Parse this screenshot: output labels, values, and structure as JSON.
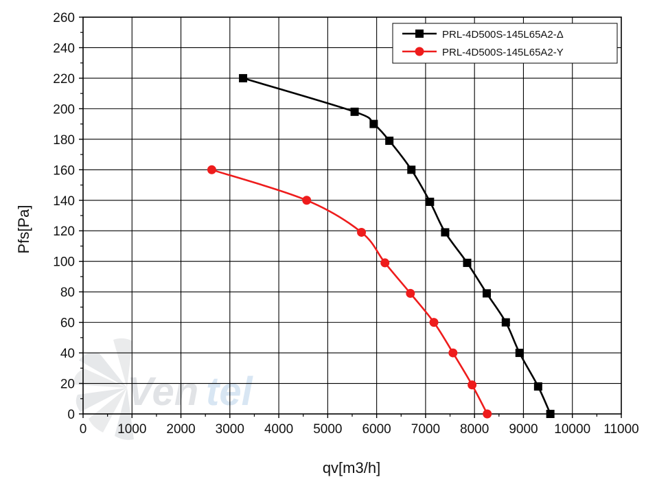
{
  "chart_data": {
    "type": "line",
    "xlabel": "qv[m3/h]",
    "ylabel": "Pfs[Pa]",
    "xlim": [
      0,
      11000
    ],
    "ylim": [
      0,
      260
    ],
    "x_ticks": [
      0,
      1000,
      2000,
      3000,
      4000,
      5000,
      6000,
      7000,
      8000,
      9000,
      10000,
      11000
    ],
    "y_ticks": [
      0,
      20,
      40,
      60,
      80,
      100,
      120,
      140,
      160,
      180,
      200,
      220,
      240,
      260
    ],
    "grid": true,
    "legend_position": "top-right",
    "series": [
      {
        "name": "PRL-4D500S-145L65A2-Δ",
        "color": "#000000",
        "marker": "square",
        "points": [
          [
            3270,
            220
          ],
          [
            5550,
            198
          ],
          [
            5940,
            190
          ],
          [
            6260,
            179
          ],
          [
            6710,
            160
          ],
          [
            7090,
            139
          ],
          [
            7400,
            119
          ],
          [
            7850,
            99
          ],
          [
            8250,
            79
          ],
          [
            8640,
            60
          ],
          [
            8920,
            40
          ],
          [
            9300,
            18
          ],
          [
            9550,
            0
          ]
        ]
      },
      {
        "name": "PRL-4D500S-145L65A2-Y",
        "color": "#ee1c1c",
        "marker": "circle",
        "points": [
          [
            2630,
            160
          ],
          [
            4570,
            140
          ],
          [
            5690,
            119
          ],
          [
            6170,
            99
          ],
          [
            6690,
            79
          ],
          [
            7170,
            60
          ],
          [
            7560,
            40
          ],
          [
            7950,
            19
          ],
          [
            8260,
            0
          ]
        ]
      }
    ]
  },
  "watermark": {
    "text_main": "Ven",
    "text_accent": "tel",
    "main_color": "#c9cdd2",
    "accent_color": "#b9d3ea"
  }
}
